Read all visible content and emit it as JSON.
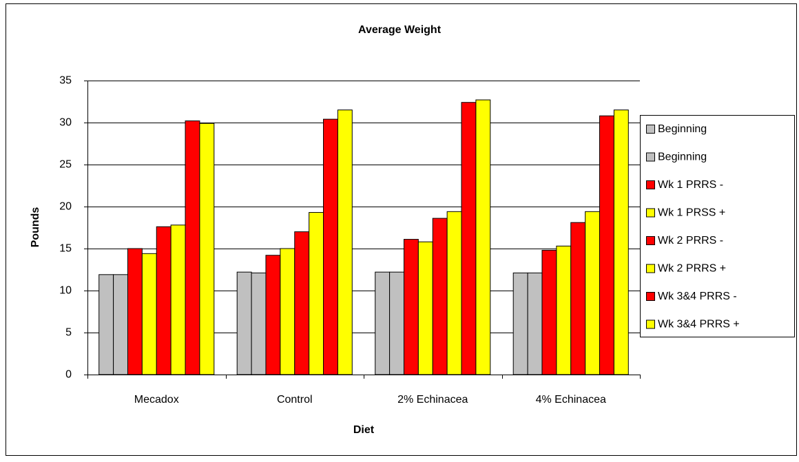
{
  "chart_data": {
    "type": "bar",
    "title": "Average Weight",
    "x_label": "Diet",
    "y_label": "Pounds",
    "categories": [
      "Mecadox",
      "Control",
      "2% Echinacea",
      "4% Echinacea"
    ],
    "series": [
      {
        "name": "Beginning",
        "color": "#c0c0c0",
        "values": [
          11.9,
          12.2,
          12.2,
          12.1
        ]
      },
      {
        "name": "Beginning",
        "color": "#c0c0c0",
        "values": [
          11.9,
          12.1,
          12.2,
          12.1
        ]
      },
      {
        "name": "Wk 1 PRRS -",
        "color": "#ff0000",
        "values": [
          15.0,
          14.2,
          16.1,
          14.8
        ]
      },
      {
        "name": "Wk 1 PRSS +",
        "color": "#ffff00",
        "values": [
          14.4,
          15.0,
          15.8,
          15.3
        ]
      },
      {
        "name": "Wk 2 PRRS -",
        "color": "#ff0000",
        "values": [
          17.6,
          17.0,
          18.6,
          18.1
        ]
      },
      {
        "name": "Wk 2 PRRS +",
        "color": "#ffff00",
        "values": [
          17.8,
          19.3,
          19.4,
          19.4
        ]
      },
      {
        "name": "Wk 3&4 PRRS -",
        "color": "#ff0000",
        "values": [
          30.2,
          30.4,
          32.4,
          30.8
        ]
      },
      {
        "name": "Wk 3&4 PRRS +",
        "color": "#ffff00",
        "values": [
          29.9,
          31.5,
          32.7,
          31.5
        ]
      }
    ],
    "ylim": [
      0,
      35
    ],
    "yticks": [
      0,
      5,
      10,
      15,
      20,
      25,
      30,
      35
    ],
    "grid": true,
    "legend": "right"
  }
}
